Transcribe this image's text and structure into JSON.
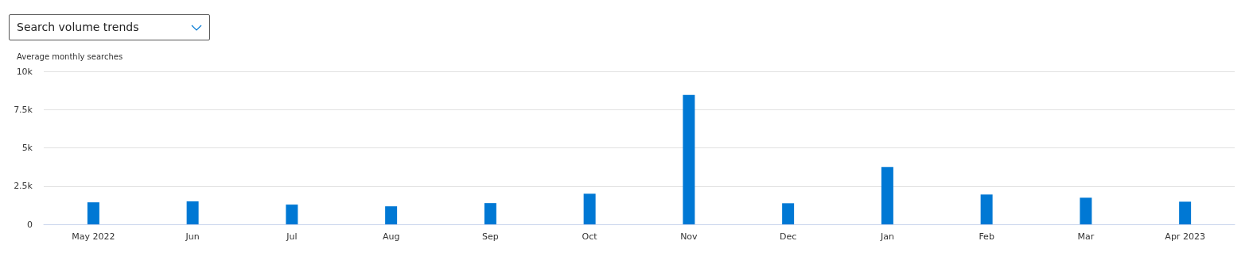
{
  "chart_data": {
    "type": "bar",
    "title": "Search volume trends",
    "ylabel": "Average monthly searches",
    "categories": [
      "May 2022",
      "Jun",
      "Jul",
      "Aug",
      "Sep",
      "Oct",
      "Nov",
      "Dec",
      "Jan",
      "Feb",
      "Mar",
      "Apr 2023"
    ],
    "values": [
      1440,
      1500,
      1290,
      1180,
      1390,
      2000,
      8460,
      1380,
      3750,
      1950,
      1740,
      1480
    ],
    "color": "#0078d4",
    "ylim": [
      0,
      10000
    ],
    "yticks": [
      {
        "value": 0,
        "label": "0"
      },
      {
        "value": 2500,
        "label": "2.5k"
      },
      {
        "value": 5000,
        "label": "5k"
      },
      {
        "value": 7500,
        "label": "7.5k"
      },
      {
        "value": 10000,
        "label": "10k"
      }
    ],
    "grid": "y"
  }
}
